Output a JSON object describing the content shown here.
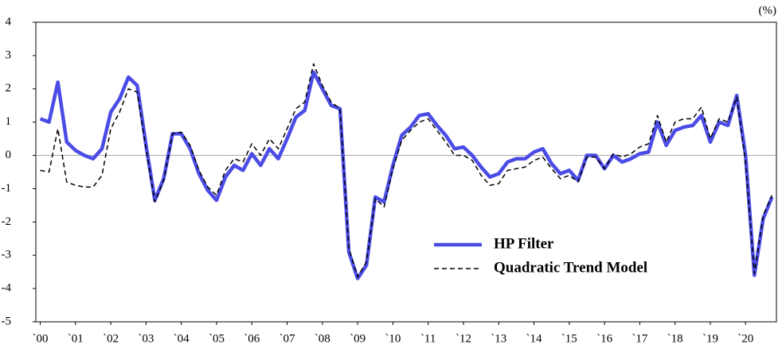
{
  "chart_data": {
    "type": "line",
    "unit_label": "(%)",
    "categories": [
      "`00",
      null,
      null,
      null,
      "`01",
      null,
      null,
      null,
      "`02",
      null,
      null,
      null,
      "`03",
      null,
      null,
      null,
      "`04",
      null,
      null,
      null,
      "`05",
      null,
      null,
      null,
      "`06",
      null,
      null,
      null,
      "`07",
      null,
      null,
      null,
      "`08",
      null,
      null,
      null,
      "`09",
      null,
      null,
      null,
      "`10",
      null,
      null,
      null,
      "`11",
      null,
      null,
      null,
      "`12",
      null,
      null,
      null,
      "`13",
      null,
      null,
      null,
      "`14",
      null,
      null,
      null,
      "`15",
      null,
      null,
      null,
      "`16",
      null,
      null,
      null,
      "`17",
      null,
      null,
      null,
      "`18",
      null,
      null,
      null,
      "`19",
      null,
      null,
      null,
      "`20",
      null,
      null,
      null
    ],
    "series": [
      {
        "name": "HP Filter",
        "color": "#4b4be6",
        "dash": false,
        "values": [
          1.1,
          1.0,
          2.2,
          0.4,
          0.15,
          0.0,
          -0.1,
          0.2,
          1.3,
          1.7,
          2.35,
          2.1,
          0.3,
          -1.35,
          -0.7,
          0.65,
          0.65,
          0.2,
          -0.55,
          -1.05,
          -1.35,
          -0.65,
          -0.3,
          -0.45,
          0.05,
          -0.3,
          0.2,
          -0.1,
          0.5,
          1.15,
          1.35,
          2.5,
          2.0,
          1.5,
          1.4,
          -2.9,
          -3.7,
          -3.3,
          -1.25,
          -1.4,
          -0.3,
          0.6,
          0.85,
          1.2,
          1.25,
          0.9,
          0.6,
          0.2,
          0.25,
          0.0,
          -0.35,
          -0.65,
          -0.55,
          -0.2,
          -0.1,
          -0.1,
          0.1,
          0.2,
          -0.25,
          -0.55,
          -0.45,
          -0.75,
          0.0,
          0.0,
          -0.4,
          0.0,
          -0.2,
          -0.1,
          0.05,
          0.1,
          1.0,
          0.3,
          0.75,
          0.85,
          0.9,
          1.2,
          0.4,
          1.0,
          0.9,
          1.8,
          0.0,
          -3.6,
          -1.9,
          -1.25
        ]
      },
      {
        "name": "Quadratic Trend Model",
        "color": "#000000",
        "dash": true,
        "values": [
          -0.45,
          -0.5,
          0.8,
          -0.8,
          -0.9,
          -0.95,
          -0.95,
          -0.6,
          0.8,
          1.3,
          2.0,
          1.9,
          0.2,
          -1.4,
          -0.75,
          0.65,
          0.7,
          0.3,
          -0.45,
          -0.95,
          -1.2,
          -0.45,
          -0.1,
          -0.2,
          0.35,
          0.0,
          0.5,
          0.2,
          0.8,
          1.4,
          1.6,
          2.75,
          2.1,
          1.6,
          1.4,
          -2.8,
          -3.65,
          -3.2,
          -1.3,
          -1.55,
          -0.4,
          0.45,
          0.75,
          1.0,
          1.1,
          0.75,
          0.4,
          0.0,
          0.0,
          -0.15,
          -0.6,
          -0.9,
          -0.85,
          -0.45,
          -0.4,
          -0.35,
          -0.15,
          -0.05,
          -0.4,
          -0.7,
          -0.6,
          -0.8,
          -0.05,
          -0.05,
          -0.4,
          0.05,
          -0.05,
          0.05,
          0.25,
          0.35,
          1.2,
          0.4,
          1.0,
          1.1,
          1.1,
          1.45,
          0.5,
          1.1,
          1.0,
          1.75,
          -0.2,
          -3.55,
          -1.8,
          -1.2
        ]
      }
    ],
    "ylim": [
      -5,
      4
    ],
    "yticks": [
      -5,
      -4,
      -3,
      -2,
      -1,
      0,
      1,
      2,
      3,
      4
    ],
    "zero_line": true
  }
}
